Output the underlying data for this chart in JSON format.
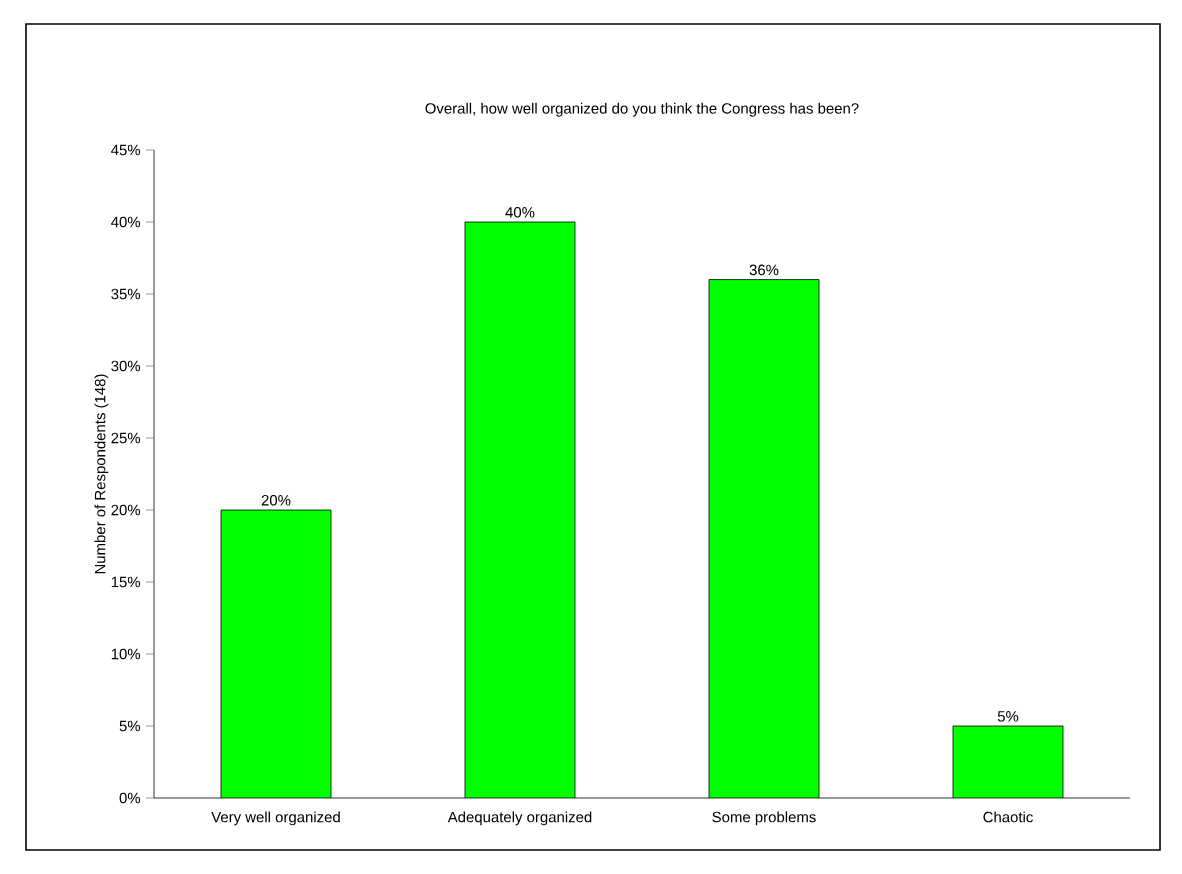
{
  "chart_data": {
    "type": "bar",
    "title": "Overall, how well organized do you think the Congress has been?",
    "ylabel": "Number of Respondents (148)",
    "categories": [
      "Very well organized",
      "Adequately organized",
      "Some problems",
      "Chaotic"
    ],
    "values": [
      20,
      40,
      36,
      5
    ],
    "value_labels": [
      "20%",
      "40%",
      "36%",
      "5%"
    ],
    "color": "#00ff00",
    "ylim": [
      0,
      45
    ],
    "yticks": [
      {
        "value": 0,
        "label": "0%"
      },
      {
        "value": 5,
        "label": "5%"
      },
      {
        "value": 10,
        "label": "10%"
      },
      {
        "value": 15,
        "label": "15%"
      },
      {
        "value": 20,
        "label": "20%"
      },
      {
        "value": 25,
        "label": "25%"
      },
      {
        "value": 30,
        "label": "30%"
      },
      {
        "value": 35,
        "label": "35%"
      },
      {
        "value": 40,
        "label": "40%"
      },
      {
        "value": 45,
        "label": "45%"
      }
    ],
    "grid": false
  }
}
